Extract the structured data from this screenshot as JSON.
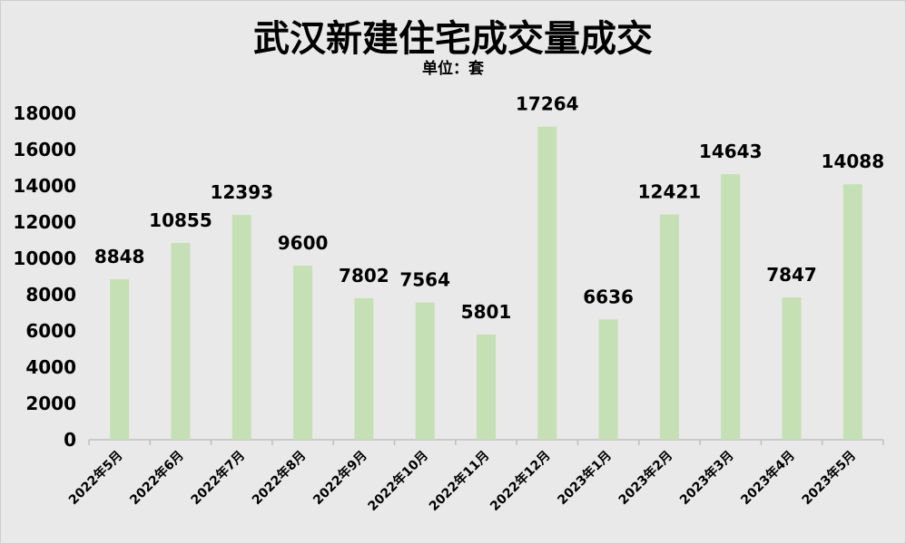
{
  "chart_data": {
    "type": "bar",
    "title": "武汉新建住宅成交量成交",
    "subtitle": "单位：套",
    "categories": [
      "2022年5月",
      "2022年6月",
      "2022年7月",
      "2022年8月",
      "2022年9月",
      "2022年10月",
      "2022年11月",
      "2022年12月",
      "2023年1月",
      "2023年2月",
      "2023年3月",
      "2023年4月",
      "2023年5月"
    ],
    "series": [
      {
        "values": [
          8848,
          10855,
          12393,
          9600,
          7802,
          7564,
          5801,
          17264,
          6636,
          12421,
          14643,
          7847,
          14088
        ]
      }
    ],
    "ylim": [
      0,
      18000
    ],
    "yticks": [
      0,
      2000,
      4000,
      6000,
      8000,
      10000,
      12000,
      14000,
      16000,
      18000
    ],
    "grid": false,
    "legend": "none",
    "colors": {
      "bar": "#c5e0b4",
      "background": "#e9e9e9",
      "axis": "#bfbfbf"
    }
  }
}
